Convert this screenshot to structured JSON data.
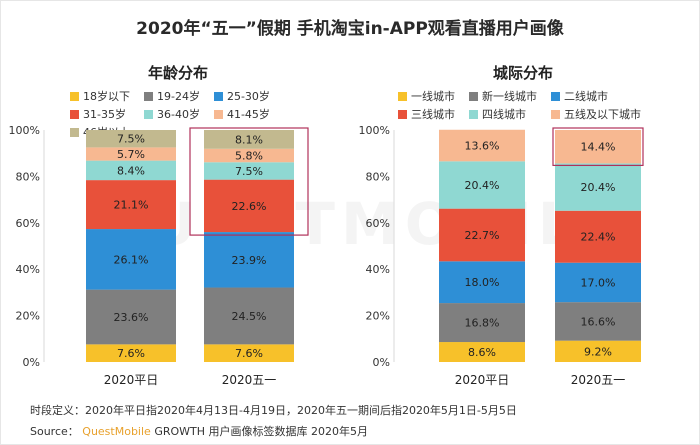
{
  "page_title": "2020年“五一”假期 手机淘宝in-APP观看直播用户画像",
  "watermark": "QUESTMOBILE",
  "footnote": "时段定义：2020年平日指2020年4月13日-4月19日，2020年五一期间后指2020年5月1日-5月5日",
  "source": {
    "prefix": "Source：",
    "brand": "QuestMobile",
    "growth": "GROWTH",
    "suffix": " 用户画像标签数据库 2020年5月"
  },
  "colors": {
    "highlight_border": "#b0315a"
  },
  "chart_data": [
    {
      "type": "bar",
      "stacked": true,
      "title": "年龄分布",
      "categories": [
        "2020平日",
        "2020五一"
      ],
      "yticks": [
        "0%",
        "20%",
        "40%",
        "60%",
        "80%",
        "100%"
      ],
      "ylim": [
        0,
        100
      ],
      "highlight_category": "2020五一",
      "legend_position": "top",
      "series": [
        {
          "name": "18岁以下",
          "color": "#f7c12a",
          "values": [
            7.6,
            7.6
          ],
          "labels": [
            "7.6%",
            "7.6%"
          ]
        },
        {
          "name": "19-24岁",
          "color": "#7f7f7f",
          "values": [
            23.6,
            24.5
          ],
          "labels": [
            "23.6%",
            "24.5%"
          ]
        },
        {
          "name": "25-30岁",
          "color": "#2e8fd6",
          "values": [
            26.1,
            23.9
          ],
          "labels": [
            "26.1%",
            "23.9%"
          ]
        },
        {
          "name": "31-35岁",
          "color": "#e8513a",
          "values": [
            21.1,
            22.6
          ],
          "labels": [
            "21.1%",
            "22.6%"
          ]
        },
        {
          "name": "36-40岁",
          "color": "#8fd8d2",
          "values": [
            8.4,
            7.5
          ],
          "labels": [
            "8.4%",
            "7.5%"
          ]
        },
        {
          "name": "41-45岁",
          "color": "#f7b891",
          "values": [
            5.7,
            5.8
          ],
          "labels": [
            "5.7%",
            "5.8%"
          ]
        },
        {
          "name": "46岁以上",
          "color": "#c2b98f",
          "values": [
            7.5,
            8.1
          ],
          "labels": [
            "7.5%",
            "8.1%"
          ]
        }
      ]
    },
    {
      "type": "bar",
      "stacked": true,
      "title": "城际分布",
      "categories": [
        "2020平日",
        "2020五一"
      ],
      "yticks": [
        "0%",
        "20%",
        "40%",
        "60%",
        "80%",
        "100%"
      ],
      "ylim": [
        0,
        100
      ],
      "highlight_category": "2020五一",
      "highlight_series": "五线及以下城市",
      "legend_position": "top",
      "series": [
        {
          "name": "一线城市",
          "color": "#f7c12a",
          "values": [
            8.6,
            9.2
          ],
          "labels": [
            "8.6%",
            "9.2%"
          ]
        },
        {
          "name": "新一线城市",
          "color": "#7f7f7f",
          "values": [
            16.8,
            16.6
          ],
          "labels": [
            "16.8%",
            "16.6%"
          ]
        },
        {
          "name": "二线城市",
          "color": "#2e8fd6",
          "values": [
            18.0,
            17.0
          ],
          "labels": [
            "18.0%",
            "17.0%"
          ]
        },
        {
          "name": "三线城市",
          "color": "#e8513a",
          "values": [
            22.7,
            22.4
          ],
          "labels": [
            "22.7%",
            "22.4%"
          ]
        },
        {
          "name": "四线城市",
          "color": "#8fd8d2",
          "values": [
            20.4,
            20.4
          ],
          "labels": [
            "20.4%",
            "20.4%"
          ]
        },
        {
          "name": "五线及以下城市",
          "color": "#f7b891",
          "values": [
            13.6,
            14.4
          ],
          "labels": [
            "13.6%",
            "14.4%"
          ]
        }
      ]
    }
  ]
}
